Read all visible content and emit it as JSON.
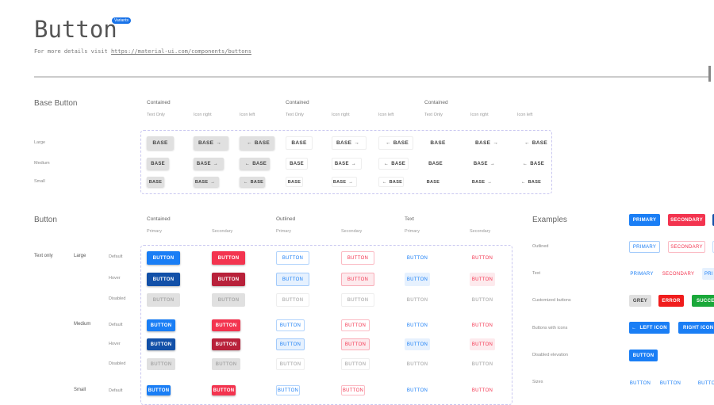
{
  "header": {
    "title": "Button",
    "badge": "Variants",
    "subtitle_prefix": "For more details visit ",
    "link": "https://material-ui.com/components/buttons"
  },
  "base": {
    "title": "Base Button",
    "groups": [
      "Contained",
      "Contained",
      "Contained"
    ],
    "columns": [
      "Text Only",
      "Icon right",
      "Icon left",
      "Text Only",
      "Icon right",
      "Icon left",
      "Text Only",
      "Icon right",
      "Icon left"
    ],
    "rows": [
      "Large",
      "Medium",
      "Small"
    ],
    "label": "BASE"
  },
  "button": {
    "title": "Button",
    "groups": [
      "Contained",
      "Outlined",
      "Text"
    ],
    "columns": [
      "Primary",
      "Secondary",
      "Primary",
      "Secondary",
      "Primary",
      "Secondary"
    ],
    "category": "Text only",
    "sizes": [
      "Large",
      "Medium",
      "Small"
    ],
    "states": [
      "Default",
      "Hover",
      "Disabled"
    ],
    "label": "BUTTON"
  },
  "examples": {
    "title": "Examples",
    "rows": [
      "Outlined",
      "Text",
      "Customized buttons",
      "Buttons with icons",
      "Disabled elevation",
      "Sizes"
    ],
    "contained": [
      "PRIMARY",
      "SECONDARY"
    ],
    "outlined": [
      "PRIMARY",
      "SECONDARY"
    ],
    "text": [
      "PRIMARY",
      "SECONDARY",
      "PRI"
    ],
    "custom": [
      "GREY",
      "ERROR",
      "SUCCESS"
    ],
    "icons": [
      "LEFT ICON",
      "RIGHT ICON"
    ],
    "disabled": "BUTTON",
    "sizes": [
      "BUTTON",
      "BUTTON",
      "BUTTON"
    ]
  },
  "colors": {
    "primary": "#1a7ef5",
    "primary_dark": "#1250a8",
    "secondary": "#f3344f",
    "secondary_dark": "#b8213a",
    "grey": "#e0e0e0",
    "error": "#f01c1c",
    "success": "#1aa83a"
  }
}
